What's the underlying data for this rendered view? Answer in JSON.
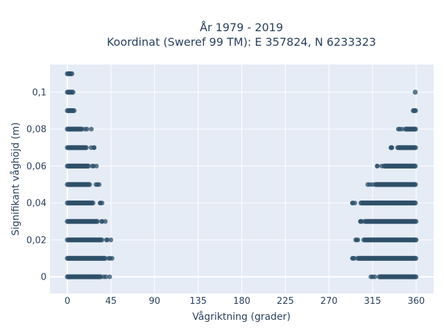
{
  "chart_data": {
    "type": "scatter",
    "title_lines": [
      "År 1979 - 2019",
      "Koordinat (Sweref 99 TM): E 357824, N 6233323"
    ],
    "xlabel": "Vågriktning (grader)",
    "ylabel": "Signifikant våghöjd (m)",
    "xlim": [
      -18,
      378
    ],
    "ylim": [
      -0.009,
      0.115
    ],
    "x_ticks": [
      0,
      45,
      90,
      135,
      180,
      225,
      270,
      315,
      360
    ],
    "x_tick_labels": [
      "0",
      "45",
      "90",
      "135",
      "180",
      "225",
      "270",
      "315",
      "360"
    ],
    "y_ticks": [
      0,
      0.02,
      0.04,
      0.06,
      0.08,
      0.1
    ],
    "y_tick_labels": [
      "0",
      "0,02",
      "0,04",
      "0,06",
      "0,08",
      "0,1"
    ],
    "grid": true,
    "legend": "none",
    "point_color": "#2d4f68",
    "bands": [
      {
        "y": 0.11,
        "ranges": [
          [
            0,
            5
          ]
        ]
      },
      {
        "y": 0.1,
        "ranges": [
          [
            0,
            6
          ],
          [
            359,
            360
          ]
        ]
      },
      {
        "y": 0.09,
        "ranges": [
          [
            0,
            8
          ],
          [
            357,
            360
          ]
        ]
      },
      {
        "y": 0.08,
        "ranges": [
          [
            0,
            16
          ],
          [
            349,
            360
          ]
        ]
      },
      {
        "y": 0.07,
        "ranges": [
          [
            0,
            20
          ],
          [
            341,
            360
          ]
        ]
      },
      {
        "y": 0.06,
        "ranges": [
          [
            0,
            22
          ],
          [
            327,
            360
          ]
        ]
      },
      {
        "y": 0.05,
        "ranges": [
          [
            0,
            24
          ],
          [
            318,
            360
          ]
        ]
      },
      {
        "y": 0.04,
        "ranges": [
          [
            0,
            27
          ],
          [
            303,
            360
          ]
        ]
      },
      {
        "y": 0.03,
        "ranges": [
          [
            0,
            31
          ],
          [
            307,
            360
          ]
        ]
      },
      {
        "y": 0.02,
        "ranges": [
          [
            0,
            36
          ],
          [
            306,
            360
          ]
        ]
      },
      {
        "y": 0.01,
        "ranges": [
          [
            0,
            40
          ],
          [
            300,
            360
          ]
        ]
      },
      {
        "y": 0.0,
        "ranges": [
          [
            0,
            35
          ],
          [
            322,
            360
          ]
        ]
      }
    ]
  }
}
